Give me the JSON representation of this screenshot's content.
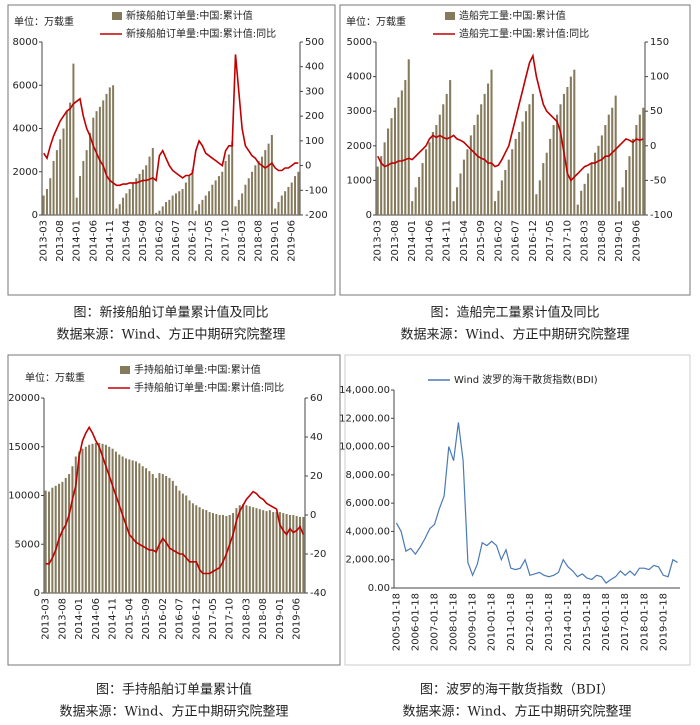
{
  "chart_data": [
    {
      "type": "combo",
      "unit_label": "单位：万载重",
      "caption": "图：新接船舶订单量累计值及同比",
      "source": "数据来源：Wind、方正中期研究院整理",
      "categories": [
        "2013-03",
        null,
        null,
        null,
        null,
        "2013-08",
        null,
        null,
        null,
        null,
        "2014-01",
        null,
        null,
        null,
        null,
        "2014-06",
        null,
        null,
        null,
        null,
        "2014-11",
        null,
        null,
        null,
        null,
        "2015-04",
        null,
        null,
        null,
        null,
        "2015-09",
        null,
        null,
        null,
        null,
        "2016-02",
        null,
        null,
        null,
        null,
        "2016-07",
        null,
        null,
        null,
        null,
        "2016-12",
        null,
        null,
        null,
        null,
        "2017-05",
        null,
        null,
        null,
        null,
        "2017-10",
        null,
        null,
        null,
        null,
        "2018-03",
        null,
        null,
        null,
        null,
        "2018-08",
        null,
        null,
        null,
        null,
        "2019-01",
        null,
        null,
        null,
        null,
        "2019-06",
        null,
        null
      ],
      "ylim": [
        0,
        8000
      ],
      "yticks": [
        0,
        2000,
        4000,
        6000,
        8000
      ],
      "y2lim": [
        -200,
        500
      ],
      "y2ticks": [
        -200,
        -100,
        0,
        100,
        200,
        300,
        400,
        500
      ],
      "series": [
        {
          "name": "新接船舶订单量:中国:累计值",
          "color": "#857a5c",
          "values": [
            900,
            1200,
            1700,
            2500,
            3000,
            3500,
            4000,
            4800,
            5200,
            7000,
            800,
            1800,
            2500,
            3000,
            3800,
            4500,
            4800,
            5000,
            5300,
            5600,
            5900,
            6000,
            300,
            500,
            800,
            1000,
            1200,
            1500,
            1700,
            1900,
            2100,
            2300,
            2700,
            3100,
            100,
            200,
            400,
            600,
            700,
            900,
            1000,
            1100,
            1200,
            1500,
            1800,
            2100,
            200,
            500,
            700,
            900,
            1100,
            1400,
            1600,
            1800,
            2000,
            2500,
            2800,
            3400,
            400,
            700,
            1000,
            1400,
            1700,
            2000,
            2300,
            2500,
            2700,
            3000,
            3300,
            3700,
            300,
            600,
            900,
            1100,
            1300,
            1500,
            1800,
            2000
          ]
        },
        {
          "name": "新接船舶订单量:中国:累计值:同比",
          "color": "#c00000",
          "axis": "y2",
          "values": [
            50,
            30,
            80,
            120,
            150,
            180,
            200,
            220,
            230,
            250,
            260,
            270,
            200,
            150,
            120,
            80,
            50,
            20,
            0,
            -40,
            -60,
            -70,
            -80,
            -80,
            -75,
            -75,
            -70,
            -70,
            -70,
            -65,
            -60,
            -60,
            -55,
            -50,
            -60,
            40,
            60,
            30,
            0,
            -20,
            -30,
            -40,
            -50,
            -40,
            -40,
            -30,
            60,
            100,
            80,
            50,
            40,
            30,
            20,
            10,
            0,
            60,
            80,
            80,
            450,
            300,
            150,
            80,
            60,
            40,
            30,
            10,
            0,
            -10,
            0,
            10,
            -10,
            -20,
            -20,
            -10,
            -10,
            0,
            10,
            10
          ]
        }
      ]
    },
    {
      "type": "combo",
      "unit_label": "单位：万载重",
      "caption": "图：造船完工量累计值及同比",
      "source": "数据来源：Wind、方正中期研究院整理",
      "categories": [
        "2013-03",
        null,
        null,
        null,
        null,
        "2013-08",
        null,
        null,
        null,
        null,
        "2014-01",
        null,
        null,
        null,
        null,
        "2014-06",
        null,
        null,
        null,
        null,
        "2014-11",
        null,
        null,
        null,
        null,
        "2015-04",
        null,
        null,
        null,
        null,
        "2015-09",
        null,
        null,
        null,
        null,
        "2016-02",
        null,
        null,
        null,
        null,
        "2016-07",
        null,
        null,
        null,
        null,
        "2016-12",
        null,
        null,
        null,
        null,
        "2017-05",
        null,
        null,
        null,
        null,
        "2017-10",
        null,
        null,
        null,
        null,
        "2018-03",
        null,
        null,
        null,
        null,
        "2018-08",
        null,
        null,
        null,
        null,
        "2019-01",
        null,
        null,
        null,
        null,
        "2019-06",
        null,
        null
      ],
      "ylim": [
        0,
        5000
      ],
      "yticks": [
        0,
        1000,
        2000,
        3000,
        4000,
        5000
      ],
      "y2lim": [
        -100,
        150
      ],
      "y2ticks": [
        -100,
        -50,
        0,
        50,
        100,
        150
      ],
      "series": [
        {
          "name": "造船完工量:中国:累计值",
          "color": "#857a5c",
          "values": [
            1400,
            1700,
            2100,
            2500,
            2800,
            3100,
            3400,
            3600,
            3900,
            4500,
            400,
            800,
            1100,
            1500,
            1900,
            2100,
            2400,
            2600,
            2900,
            3200,
            3500,
            3900,
            400,
            800,
            1200,
            1600,
            1900,
            2300,
            2600,
            2900,
            3200,
            3500,
            3800,
            4200,
            400,
            700,
            1000,
            1300,
            1600,
            1900,
            2200,
            2400,
            2700,
            3000,
            3200,
            3500,
            600,
            1000,
            1500,
            1800,
            2200,
            2600,
            2900,
            3200,
            3500,
            3700,
            4000,
            4200,
            300,
            700,
            900,
            1200,
            1500,
            1800,
            2000,
            2300,
            2600,
            2900,
            3100,
            3450,
            400,
            800,
            1300,
            1700,
            2200,
            2600,
            2900,
            3100
          ]
        },
        {
          "name": "造船完工量:中国:累计值:同比",
          "color": "#c00000",
          "axis": "y2",
          "values": [
            -15,
            -25,
            -30,
            -28,
            -25,
            -25,
            -22,
            -22,
            -20,
            -18,
            -20,
            -15,
            -10,
            -5,
            0,
            10,
            15,
            12,
            15,
            12,
            10,
            12,
            15,
            10,
            8,
            5,
            0,
            -5,
            -10,
            -15,
            -18,
            -20,
            -25,
            -25,
            -30,
            -28,
            -20,
            -10,
            0,
            20,
            40,
            60,
            80,
            100,
            120,
            130,
            100,
            80,
            60,
            50,
            45,
            40,
            35,
            20,
            -10,
            -40,
            -50,
            -45,
            -40,
            -35,
            -30,
            -28,
            -25,
            -25,
            -22,
            -20,
            -15,
            -15,
            -10,
            -5,
            0,
            5,
            10,
            8,
            5,
            10,
            8,
            10
          ]
        }
      ]
    },
    {
      "type": "combo",
      "unit_label": "单位：万载重",
      "caption": "图：手持船舶订单量累计值",
      "source": "数据来源：Wind、方正中期研究院整理",
      "categories": [
        "2013-03",
        null,
        null,
        null,
        null,
        "2013-08",
        null,
        null,
        null,
        null,
        "2014-01",
        null,
        null,
        null,
        null,
        "2014-06",
        null,
        null,
        null,
        null,
        "2014-11",
        null,
        null,
        null,
        null,
        "2015-04",
        null,
        null,
        null,
        null,
        "2015-09",
        null,
        null,
        null,
        null,
        "2016-02",
        null,
        null,
        null,
        null,
        "2016-07",
        null,
        null,
        null,
        null,
        "2016-12",
        null,
        null,
        null,
        null,
        "2017-05",
        null,
        null,
        null,
        null,
        "2017-10",
        null,
        null,
        null,
        null,
        "2018-03",
        null,
        null,
        null,
        null,
        "2018-08",
        null,
        null,
        null,
        null,
        "2019-01",
        null,
        null,
        null,
        null,
        "2019-06",
        null,
        null
      ],
      "ylim": [
        0,
        20000
      ],
      "yticks": [
        0,
        5000,
        10000,
        15000,
        20000
      ],
      "y2lim": [
        -40,
        60
      ],
      "y2ticks": [
        -40,
        -20,
        0,
        20,
        40,
        60
      ],
      "series": [
        {
          "name": "手持船舶订单量:中国:累计值",
          "color": "#857a5c",
          "values": [
            10500,
            10400,
            10800,
            11000,
            11200,
            11400,
            11800,
            12200,
            13000,
            14000,
            14500,
            14800,
            15000,
            15200,
            15300,
            15400,
            15400,
            15300,
            15200,
            15000,
            14800,
            14500,
            14200,
            14000,
            13800,
            13700,
            13600,
            13500,
            13300,
            13000,
            12800,
            12500,
            12200,
            11800,
            12300,
            12200,
            12000,
            11800,
            11500,
            11000,
            10500,
            10200,
            10000,
            9500,
            9200,
            9000,
            8800,
            8600,
            8500,
            8300,
            8200,
            8100,
            8000,
            8000,
            7900,
            8000,
            8200,
            8700,
            9000,
            9100,
            9000,
            8900,
            8800,
            8700,
            8600,
            8500,
            8400,
            8500,
            8300,
            8300,
            8300,
            8200,
            8100,
            8000,
            8000,
            7900,
            7800,
            7800
          ]
        },
        {
          "name": "手持船舶订单量:中国:累计值:同比",
          "color": "#c00000",
          "axis": "y2",
          "values": [
            -25,
            -25,
            -22,
            -18,
            -12,
            -8,
            -5,
            0,
            8,
            15,
            30,
            38,
            42,
            45,
            42,
            38,
            35,
            30,
            25,
            20,
            15,
            10,
            5,
            0,
            -5,
            -10,
            -12,
            -14,
            -15,
            -16,
            -17,
            -18,
            -18,
            -19,
            -15,
            -12,
            -14,
            -17,
            -18,
            -19,
            -20,
            -20,
            -22,
            -24,
            -24,
            -24,
            -28,
            -30,
            -30,
            -30,
            -29,
            -28,
            -27,
            -24,
            -20,
            -15,
            -10,
            -3,
            2,
            5,
            8,
            10,
            12,
            11,
            9,
            8,
            6,
            5,
            4,
            3,
            -5,
            -8,
            -10,
            -7,
            -9,
            -8,
            -6,
            -10
          ]
        }
      ]
    },
    {
      "type": "line",
      "caption": "图：波罗的海干散货指数（BDI）",
      "source": "数据来源：Wind、方正中期研究院整理",
      "categories": [
        "2005-01-18",
        null,
        null,
        null,
        "2006-01-18",
        null,
        null,
        null,
        "2007-01-18",
        null,
        null,
        null,
        "2008-01-18",
        null,
        null,
        null,
        "2009-01-18",
        null,
        null,
        null,
        "2010-01-18",
        null,
        null,
        null,
        "2011-01-18",
        null,
        null,
        null,
        "2012-01-18",
        null,
        null,
        null,
        "2013-01-18",
        null,
        null,
        null,
        "2014-01-18",
        null,
        null,
        null,
        "2015-01-18",
        null,
        null,
        null,
        "2016-01-18",
        null,
        null,
        null,
        "2017-01-18",
        null,
        null,
        null,
        "2018-01-18",
        null,
        null,
        null,
        "2019-01-18",
        null,
        null,
        null
      ],
      "ylim": [
        0,
        14000
      ],
      "yticks": [
        {
          "value": 0,
          "label": "0.00"
        },
        {
          "value": 2000,
          "label": "2,000.00"
        },
        {
          "value": 4000,
          "label": "4,000.00"
        },
        {
          "value": 6000,
          "label": "6,000.00"
        },
        {
          "value": 8000,
          "label": "8,000.00"
        },
        {
          "value": 10000,
          "label": "10,000.00"
        },
        {
          "value": 12000,
          "label": "12,000.00"
        },
        {
          "value": 14000,
          "label": "14,000.00"
        }
      ],
      "series": [
        {
          "name": "Wind 波罗的海干散货指数(BDI)",
          "color": "#4a7ab5",
          "values": [
            4600,
            4000,
            2600,
            2800,
            2400,
            2900,
            3500,
            4200,
            4500,
            5600,
            6500,
            10000,
            9000,
            11700,
            9000,
            1800,
            900,
            1700,
            3200,
            3000,
            3300,
            3000,
            2000,
            2700,
            1400,
            1300,
            1400,
            2000,
            900,
            1000,
            1100,
            900,
            800,
            900,
            1100,
            2000,
            1500,
            1200,
            800,
            1000,
            700,
            600,
            900,
            800,
            350,
            600,
            800,
            1200,
            900,
            1200,
            900,
            1400,
            1400,
            1300,
            1600,
            1500,
            900,
            800,
            2000,
            1800
          ]
        }
      ]
    }
  ]
}
